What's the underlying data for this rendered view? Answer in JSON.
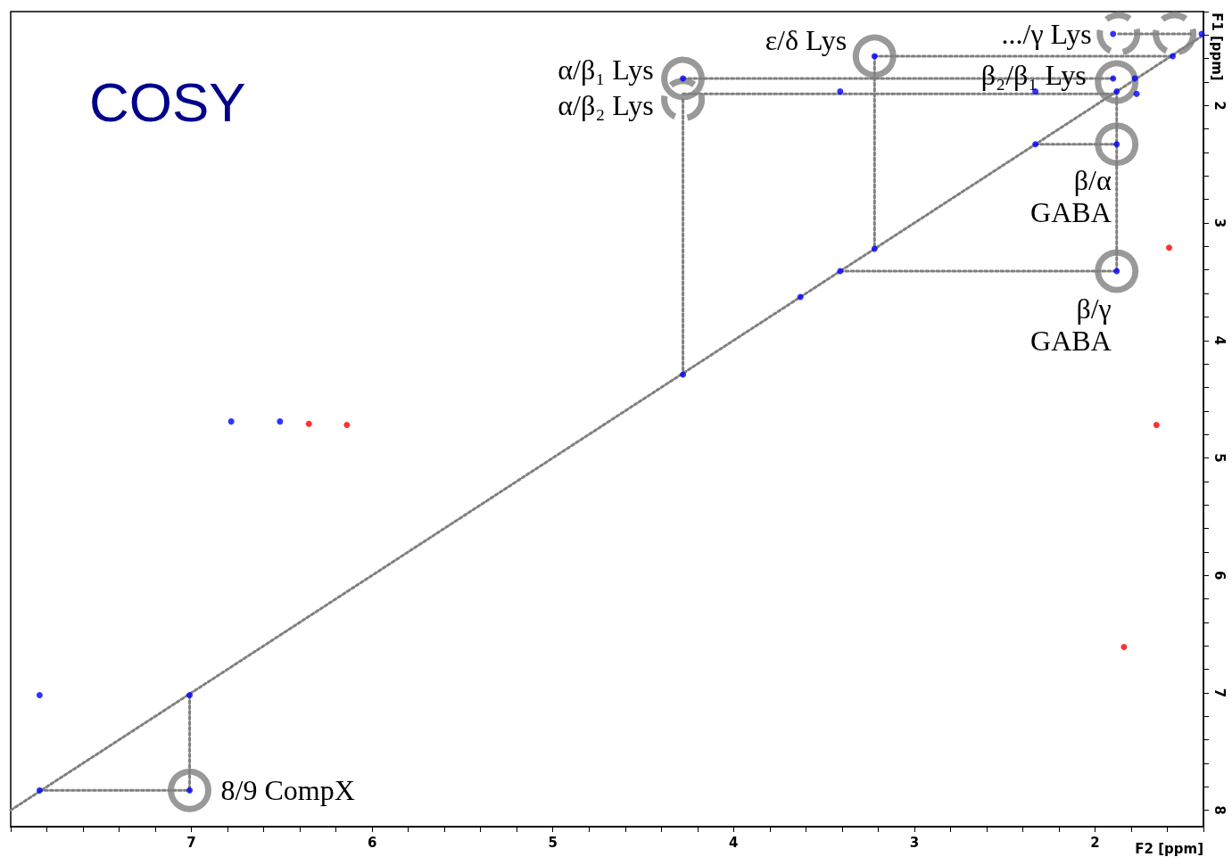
{
  "chart_data": {
    "type": "scatter",
    "title": "COSY",
    "xlabel": "F2 [ppm]",
    "ylabel": "F1 [ppm]",
    "xlim": [
      8.0,
      1.4
    ],
    "ylim": [
      8.14,
      1.2
    ],
    "xticks": [
      {
        "value": 8.0,
        "label": null
      },
      {
        "value": 7.8,
        "label": null
      },
      {
        "value": 7.6,
        "label": null
      },
      {
        "value": 7.4,
        "label": null
      },
      {
        "value": 7.2,
        "label": null
      },
      7,
      {
        "value": 6.8,
        "label": null
      },
      {
        "value": 6.6,
        "label": null
      },
      {
        "value": 6.4,
        "label": null
      },
      {
        "value": 6.2,
        "label": null
      },
      6,
      {
        "value": 5.8,
        "label": null
      },
      {
        "value": 5.6,
        "label": null
      },
      {
        "value": 5.4,
        "label": null
      },
      {
        "value": 5.2,
        "label": null
      },
      5,
      {
        "value": 4.8,
        "label": null
      },
      {
        "value": 4.6,
        "label": null
      },
      {
        "value": 4.4,
        "label": null
      },
      {
        "value": 4.2,
        "label": null
      },
      4,
      {
        "value": 3.8,
        "label": null
      },
      {
        "value": 3.6,
        "label": null
      },
      {
        "value": 3.4,
        "label": null
      },
      {
        "value": 3.2,
        "label": null
      },
      3,
      {
        "value": 2.8,
        "label": null
      },
      {
        "value": 2.6,
        "label": null
      },
      {
        "value": 2.4,
        "label": null
      },
      {
        "value": 2.2,
        "label": null
      },
      2,
      {
        "value": 1.8,
        "label": null
      },
      {
        "value": 1.6,
        "label": null
      },
      {
        "value": 1.4,
        "label": null
      }
    ],
    "yticks": [
      {
        "value": 1.2,
        "label": null
      },
      {
        "value": 1.4,
        "label": null
      },
      {
        "value": 1.6,
        "label": null
      },
      {
        "value": 1.8,
        "label": null
      },
      2,
      {
        "value": 2.2,
        "label": null
      },
      {
        "value": 2.4,
        "label": null
      },
      {
        "value": 2.6,
        "label": null
      },
      {
        "value": 2.8,
        "label": null
      },
      3,
      {
        "value": 3.2,
        "label": null
      },
      {
        "value": 3.4,
        "label": null
      },
      {
        "value": 3.6,
        "label": null
      },
      {
        "value": 3.8,
        "label": null
      },
      4,
      {
        "value": 4.2,
        "label": null
      },
      {
        "value": 4.4,
        "label": null
      },
      {
        "value": 4.6,
        "label": null
      },
      {
        "value": 4.8,
        "label": null
      },
      5,
      {
        "value": 5.2,
        "label": null
      },
      {
        "value": 5.4,
        "label": null
      },
      {
        "value": 5.6,
        "label": null
      },
      {
        "value": 5.8,
        "label": null
      },
      6,
      {
        "value": 6.2,
        "label": null
      },
      {
        "value": 6.4,
        "label": null
      },
      {
        "value": 6.6,
        "label": null
      },
      {
        "value": 6.8,
        "label": null
      },
      7,
      {
        "value": 7.2,
        "label": null
      },
      {
        "value": 7.4,
        "label": null
      },
      {
        "value": 7.6,
        "label": null
      },
      {
        "value": 7.8,
        "label": null
      },
      8
    ],
    "grid": false,
    "series": [
      {
        "type": "line",
        "color": "#808080",
        "line_style": "dotted",
        "x": [
          8.0,
          1.4
        ],
        "values": [
          8.0,
          1.4
        ]
      },
      {
        "type": "line",
        "color": "#808080",
        "line_style": "dotted",
        "x": [
          3.22,
          1.57
        ],
        "values": [
          1.58,
          1.58
        ]
      },
      {
        "type": "line",
        "color": "#808080",
        "line_style": "dotted",
        "x": [
          4.28,
          1.9
        ],
        "values": [
          1.77,
          1.77
        ]
      },
      {
        "type": "line",
        "color": "#808080",
        "line_style": "dotted",
        "x": [
          4.28,
          1.88
        ],
        "values": [
          1.9,
          1.9
        ]
      },
      {
        "type": "line",
        "color": "#808080",
        "line_style": "dotted",
        "x": [
          4.28,
          4.28
        ],
        "values": [
          1.95,
          4.29
        ]
      },
      {
        "type": "line",
        "color": "#808080",
        "line_style": "dotted",
        "x": [
          3.22,
          3.22
        ],
        "values": [
          1.58,
          3.22
        ]
      },
      {
        "type": "line",
        "color": "#808080",
        "line_style": "dotted",
        "x": [
          1.87,
          1.47
        ],
        "values": [
          1.39,
          1.39
        ]
      },
      {
        "type": "line",
        "color": "#808080",
        "line_style": "dotted",
        "x": [
          1.88,
          1.88
        ],
        "values": [
          1.88,
          3.41
        ]
      },
      {
        "type": "line",
        "color": "#808080",
        "line_style": "dotted",
        "x": [
          2.33,
          1.88
        ],
        "values": [
          2.33,
          2.33
        ]
      },
      {
        "type": "line",
        "color": "#808080",
        "line_style": "dotted",
        "x": [
          3.41,
          1.88
        ],
        "values": [
          3.41,
          3.41
        ]
      },
      {
        "type": "line",
        "color": "#808080",
        "line_style": "dotted",
        "x": [
          7.01,
          7.01
        ],
        "values": [
          7.02,
          7.83
        ]
      },
      {
        "type": "line",
        "color": "#808080",
        "line_style": "dotted",
        "x": [
          7.84,
          7.01
        ],
        "values": [
          7.83,
          7.83
        ]
      },
      {
        "type": "scatter",
        "color": "#808080",
        "marker": "circle",
        "line_style": "solid",
        "x": [
          4.28,
          3.22,
          1.88,
          1.88,
          1.88,
          7.01
        ],
        "values": [
          1.77,
          1.58,
          1.8,
          2.33,
          3.41,
          7.83
        ]
      },
      {
        "type": "scatter",
        "color": "#808080",
        "marker": "circle",
        "line_style": "dashed",
        "x": [
          4.28,
          1.87,
          1.56
        ],
        "values": [
          1.95,
          1.39,
          1.39
        ]
      },
      {
        "type": "scatter",
        "color": "#0000ff",
        "marker": "circle",
        "x": [
          7.84,
          7.84,
          7.01,
          7.01,
          4.28,
          4.28,
          3.41,
          3.41,
          3.63,
          3.22,
          3.22,
          2.33,
          2.33,
          1.9,
          1.88,
          1.88,
          1.88,
          1.9,
          1.77,
          1.57,
          1.41,
          6.78,
          6.51,
          1.78
        ],
        "values": [
          7.02,
          7.83,
          7.02,
          7.83,
          1.77,
          4.29,
          1.88,
          3.41,
          3.63,
          1.58,
          3.22,
          1.88,
          2.33,
          1.77,
          1.88,
          2.33,
          3.41,
          1.39,
          1.9,
          1.58,
          1.39,
          4.69,
          4.69,
          1.77
        ]
      },
      {
        "type": "scatter",
        "color": "#ff0000",
        "marker": "circle",
        "x": [
          6.35,
          6.14,
          1.66,
          1.59,
          1.84
        ],
        "values": [
          4.71,
          4.72,
          4.72,
          3.21,
          6.61
        ]
      }
    ],
    "annotations": [
      {
        "text": "α/β₁ Lys",
        "x": 4.28,
        "y": 1.77
      },
      {
        "text": "α/β₂ Lys",
        "x": 4.28,
        "y": 1.95
      },
      {
        "text": "ε/δ Lys",
        "x": 3.22,
        "y": 1.58
      },
      {
        "text": ".../γ Lys",
        "x": 1.87,
        "y": 1.39
      },
      {
        "text": "β₂/β₁ Lys",
        "x": 1.9,
        "y": 1.77
      },
      {
        "text": "β/α\nGABA",
        "x": 1.88,
        "y": 2.33
      },
      {
        "text": "β/γ\nGABA",
        "x": 1.88,
        "y": 3.41
      },
      {
        "text": "8/9 CompX",
        "x": 7.01,
        "y": 7.83
      }
    ]
  }
}
